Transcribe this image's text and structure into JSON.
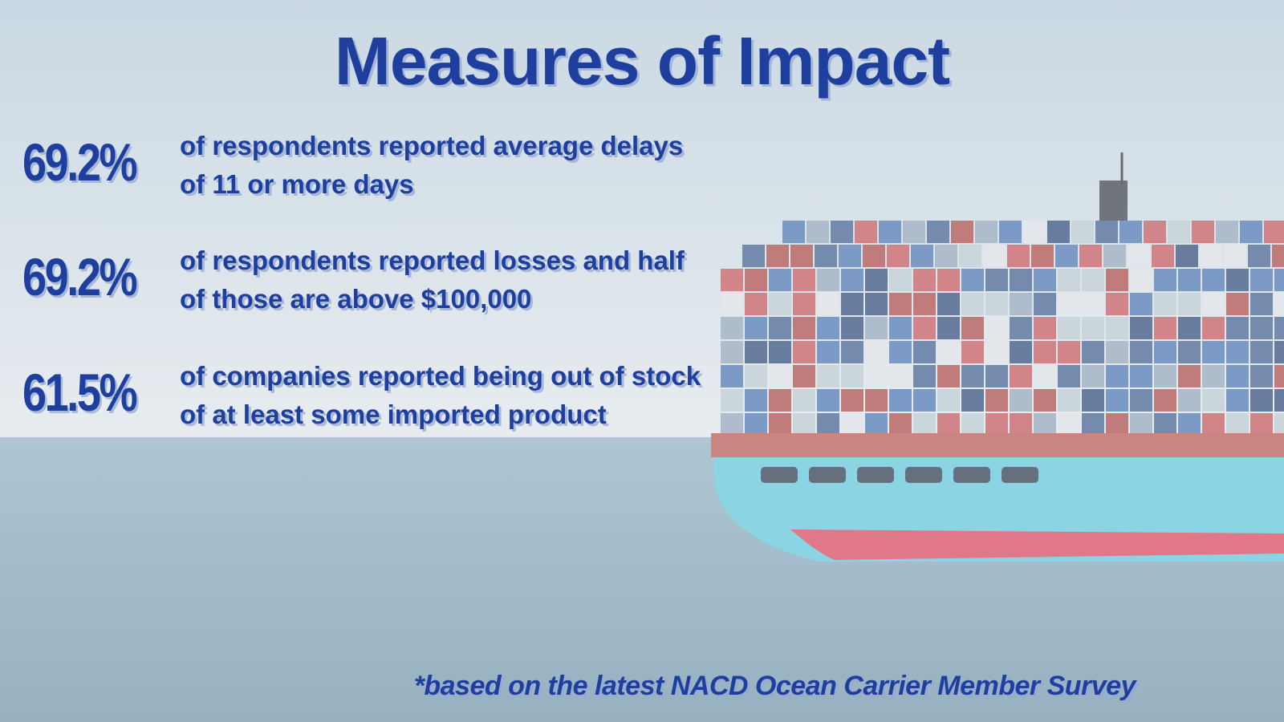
{
  "title": "Measures of Impact",
  "stats": [
    {
      "value": "69.2%",
      "text": "of respondents reported average delays of 11 or more days"
    },
    {
      "value": "69.2%",
      "text": "of respondents reported losses and half of those are above $100,000"
    },
    {
      "value": "61.5%",
      "text": "of companies reported being out of stock of at least some imported product"
    }
  ],
  "footnote": "*based on the latest NACD Ocean Carrier Member Survey"
}
